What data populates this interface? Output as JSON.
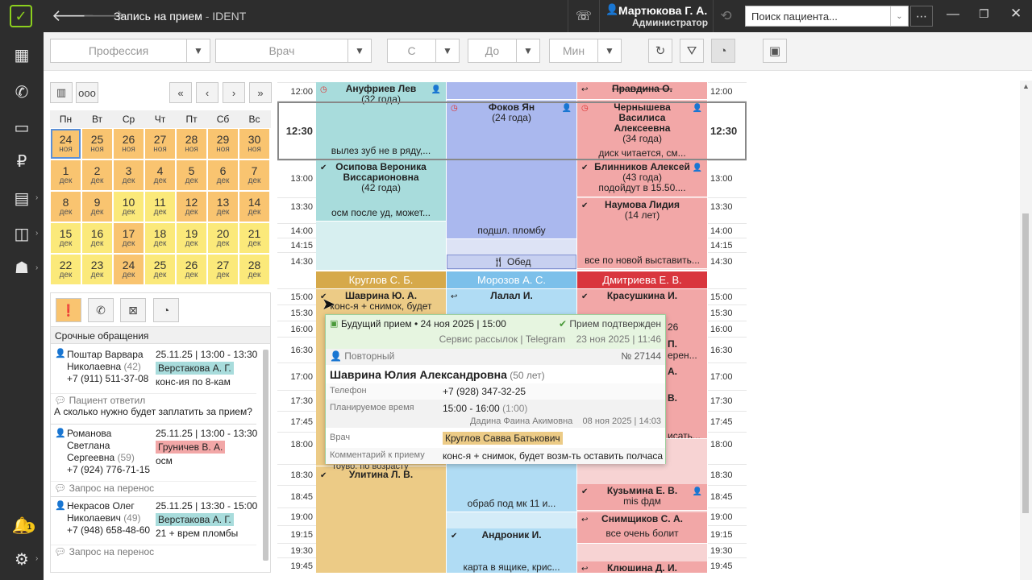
{
  "window": {
    "title_main": "Запись на прием",
    "title_sep": " - ",
    "title_app": "IDENT",
    "user_name": "Мартюкова Г. А.",
    "user_role": "Администратор",
    "search_placeholder": "Поиск пациента..."
  },
  "filters": {
    "profession": "Профессия",
    "doctor": "Врач",
    "from": "С",
    "to": "До",
    "min": "Мин"
  },
  "calendar": {
    "weekdays": [
      "Пн",
      "Вт",
      "Ср",
      "Чт",
      "Пт",
      "Сб",
      "Вс"
    ],
    "rows": [
      [
        {
          "d": "24",
          "m": "ноя"
        },
        {
          "d": "25",
          "m": "ноя"
        },
        {
          "d": "26",
          "m": "ноя"
        },
        {
          "d": "27",
          "m": "ноя"
        },
        {
          "d": "28",
          "m": "ноя"
        },
        {
          "d": "29",
          "m": "ноя"
        },
        {
          "d": "30",
          "m": "ноя"
        }
      ],
      [
        {
          "d": "1",
          "m": "дек"
        },
        {
          "d": "2",
          "m": "дек"
        },
        {
          "d": "3",
          "m": "дек"
        },
        {
          "d": "4",
          "m": "дек"
        },
        {
          "d": "5",
          "m": "дек"
        },
        {
          "d": "6",
          "m": "дек"
        },
        {
          "d": "7",
          "m": "дек"
        }
      ],
      [
        {
          "d": "8",
          "m": "дек"
        },
        {
          "d": "9",
          "m": "дек"
        },
        {
          "d": "10",
          "m": "дек"
        },
        {
          "d": "11",
          "m": "дек"
        },
        {
          "d": "12",
          "m": "дек"
        },
        {
          "d": "13",
          "m": "дек"
        },
        {
          "d": "14",
          "m": "дек"
        }
      ],
      [
        {
          "d": "15",
          "m": "дек"
        },
        {
          "d": "16",
          "m": "дек"
        },
        {
          "d": "17",
          "m": "дек"
        },
        {
          "d": "18",
          "m": "дек"
        },
        {
          "d": "19",
          "m": "дек"
        },
        {
          "d": "20",
          "m": "дек"
        },
        {
          "d": "21",
          "m": "дек"
        }
      ],
      [
        {
          "d": "22",
          "m": "дек"
        },
        {
          "d": "23",
          "m": "дек"
        },
        {
          "d": "24",
          "m": "дек"
        },
        {
          "d": "25",
          "m": "дек"
        },
        {
          "d": "26",
          "m": "дек"
        },
        {
          "d": "27",
          "m": "дек"
        },
        {
          "d": "28",
          "m": "дек"
        }
      ]
    ]
  },
  "requests": {
    "title": "Срочные обращения",
    "items": [
      {
        "name1": "Поштар Варвара",
        "name2": "Николаевна",
        "age": "(42)",
        "phone": "+7 (911) 511-37-08",
        "datetime": "25.11.25 | 13:00 - 13:30",
        "doctor": "Верстакова А. Г.",
        "note": "конс-ия по 8-кам",
        "status": "Пациент ответил",
        "message": "А сколько нужно будет заплатить за прием?"
      },
      {
        "name1": "Романова",
        "name2": "Светлана",
        "name3": "Сергеевна",
        "age": "(59)",
        "phone": "+7 (924) 776-71-15",
        "datetime": "25.11.25 | 13:00 - 13:30",
        "doctor": "Груничев В. А.",
        "note": "осм",
        "status": "Запрос на перенос"
      },
      {
        "name1": "Некрасов Олег",
        "name2": "Николаевич",
        "age": "(49)",
        "phone": "+7 (948) 658-48-60",
        "datetime": "25.11.25 | 13:30 - 15:00",
        "doctor": "Верстакова А. Г.",
        "note": "21 + врем пломбы",
        "status": "Запрос на перенос"
      }
    ]
  },
  "times": [
    "12:00",
    "12:30",
    "13:00",
    "13:30",
    "14:00",
    "14:15",
    "14:30",
    "15:00",
    "15:30",
    "16:00",
    "16:30",
    "17:00",
    "17:30",
    "17:45",
    "18:00",
    "18:30",
    "18:45",
    "19:00",
    "19:15",
    "19:30",
    "19:45"
  ],
  "schedule": {
    "upper": [
      {
        "name": "Ануфриев Лев",
        "age": "(32 года)",
        "comment": "вылез зуб не в ряду,..."
      },
      {
        "name": "Осипова Вероника Виссарионовна",
        "age": "(42 года)",
        "comment": "осм после уд, может..."
      },
      {
        "name": "Фоков Ян",
        "age": "(24 года)",
        "comment": "подшл. пломбу"
      },
      {
        "name": "Обед"
      },
      {
        "name": "Правдина О."
      },
      {
        "name": "Чернышева Василиса Алексеевна",
        "age": "(34 года)",
        "comment": "диск читается, см..."
      },
      {
        "name": "Блинников Алексей",
        "age": "(43 года)",
        "comment": "подойдут в 15.50...."
      },
      {
        "name": "Наумова Лидия",
        "age": "(14 лет)",
        "comment": "все по новой выставить..."
      }
    ],
    "doctors": [
      "Круглов С. Б.",
      "Морозов А. С.",
      "Дмитриева Е. В."
    ],
    "lower": [
      {
        "name": "Шаврина Ю. А.",
        "comment": "конс-я + снимок, будет"
      },
      {
        "name": "Улитина Л. В."
      },
      {
        "name": "Лалал И."
      },
      {
        "comment": "обраб под мк 11 и..."
      },
      {
        "name": "Андроник И.",
        "comment": "карта в ящике, крис..."
      },
      {
        "name": "Красушкина И."
      },
      {
        "name": "Кузьмина Е. В.",
        "comment": "mis фдм"
      },
      {
        "name": "Снимщиков С. А.",
        "comment": "все очень болит"
      },
      {
        "name": "Клюшина Д. И."
      }
    ],
    "hidden_fragments": [
      "26",
      "П.",
      "ерен...",
      "А.",
      "В.",
      "исать..."
    ]
  },
  "tooltip": {
    "header": "Будущий прием • 24 ноя 2025 | 15:00",
    "confirmed": "Прием подтвержден",
    "source": "Сервис рассылок | Telegram",
    "source_date": "23 ноя 2025 | 11:46",
    "type": "Повторный",
    "number": "№ 27144",
    "patient": "Шаврина Юлия Александровна",
    "patient_age": "(50 лет)",
    "phone_label": "Телефон",
    "phone": "+7 (928) 347-32-25",
    "time_label": "Планируемое время",
    "time": "15:00 - 16:00",
    "duration": "(1:00)",
    "created_by": "Дадина Фаина Акимовна",
    "created_date": "08 ноя 2025 | 14:03",
    "doctor_label": "Врач",
    "doctor": "Круглов Савва Батькович",
    "comment_label": "Комментарий к приему",
    "comment": "конс-я + снимок, будет возм-ть оставить полчаса",
    "below_fragment": "тоуво. по возрасту"
  },
  "badge_count": "1",
  "colors": {
    "teal": "#a8dcdc",
    "blue": "#aab8ee",
    "pink": "#f2a7a7",
    "gold": "#d6a94a",
    "orange": "#f9c470",
    "yellow": "#fbe97a",
    "green": "#8ccf1e"
  }
}
